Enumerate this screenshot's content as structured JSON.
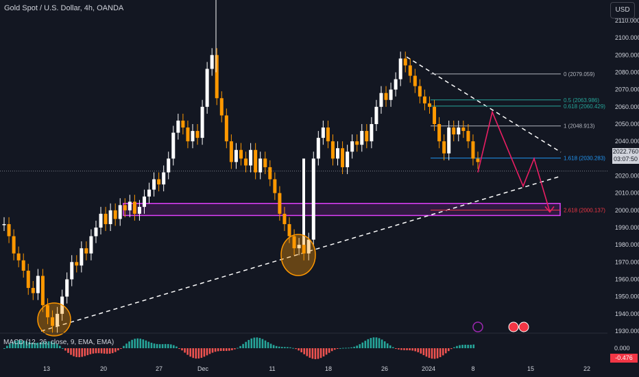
{
  "header": {
    "title": "Gold Spot / U.S. Dollar, 4h, OANDA",
    "currency": "USD"
  },
  "price_tag": {
    "price": "2022.760",
    "countdown": "03:07:50"
  },
  "macd": {
    "label": "MACD (12, 26, close, 9, EMA, EMA)",
    "value1": "0.000",
    "value2": "-0.476"
  },
  "colors": {
    "background": "#131722",
    "up": "#ffffff",
    "down": "#ff9800",
    "macd_pos": "#26a69a",
    "macd_neg": "#ef5350",
    "magenta": "#e040fb",
    "arrow": "#e91e63",
    "fib_grey": "#b2b5be",
    "fib_green": "#26a69a",
    "fib_blue": "#2196f3",
    "fib_red": "#f23645"
  },
  "chart_data": {
    "type": "candlestick",
    "symbol": "XAUUSD",
    "interval": "4h",
    "y_ticks": [
      1930,
      1940,
      1950,
      1960,
      1970,
      1980,
      1990,
      2000,
      2010,
      2020,
      2030,
      2040,
      2050,
      2060,
      2070,
      2080,
      2090,
      2100,
      2110
    ],
    "x_ticks": [
      "13",
      "20",
      "27",
      "Dec",
      "11",
      "18",
      "26",
      "2024",
      "8",
      "15",
      "22"
    ],
    "fib_levels": [
      {
        "label": "0 (2079.059)",
        "value": 2079.059,
        "color": "#b2b5be"
      },
      {
        "label": "0.5 (2063.986)",
        "value": 2063.986,
        "color": "#26a69a"
      },
      {
        "label": "0.618 (2060.429)",
        "value": 2060.429,
        "color": "#26a69a"
      },
      {
        "label": "1 (2048.913)",
        "value": 2048.913,
        "color": "#b2b5be"
      },
      {
        "label": "1.618 (2030.283)",
        "value": 2030.283,
        "color": "#2196f3"
      },
      {
        "label": "2.618 (2000.137)",
        "value": 2000.137,
        "color": "#f23645"
      }
    ],
    "support_zone": [
      1997,
      2004
    ],
    "projected_path": [
      2022,
      2057,
      2014,
      2030,
      1999
    ],
    "last_price": 2022.76,
    "ohlc": [
      1992,
      1985,
      1975,
      1971,
      1965,
      1955,
      1952,
      1962,
      1945,
      1938,
      1933,
      1940,
      1950,
      1960,
      1970,
      1968,
      1978,
      1975,
      1985,
      1990,
      1998,
      1992,
      2000,
      1995,
      2003,
      2000,
      2005,
      1998,
      2002,
      2008,
      2012,
      2018,
      2015,
      2022,
      2030,
      2045,
      2052,
      2048,
      2040,
      2046,
      2042,
      2060,
      2082,
      2090,
      2065,
      2055,
      2040,
      2028,
      2035,
      2030,
      2026,
      2035,
      2022,
      2030,
      2025,
      2018,
      2010,
      1998,
      1992,
      1985,
      1978,
      1980,
      1975,
      1983,
      2030,
      2042,
      2048,
      2040,
      2030,
      2036,
      2025,
      2034,
      2040,
      2038,
      2046,
      2040,
      2050,
      2060,
      2068,
      2064,
      2070,
      2076,
      2088,
      2084,
      2078,
      2072,
      2066,
      2062,
      2060,
      2050,
      2040,
      2033,
      2048,
      2044,
      2048,
      2046,
      2040,
      2030,
      2028
    ]
  }
}
